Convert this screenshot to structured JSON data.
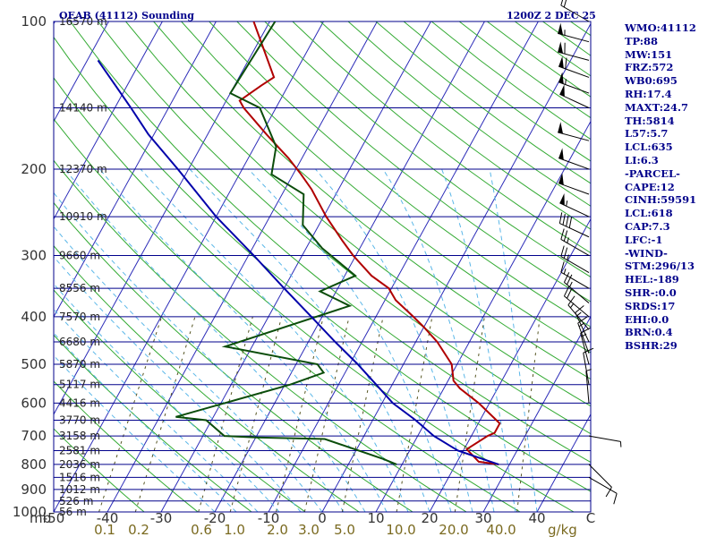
{
  "header": {
    "station": "OEAB (41112) Sounding",
    "time": "1200Z  2 DEC 25"
  },
  "colors": {
    "isobar": "#00008b",
    "isotherm": "#2c2cb8",
    "dry_adiabat": "#33aa33",
    "moist_adiabat": "#5bb7e8",
    "mixing_ratio": "#555522",
    "temperature": "#b00000",
    "dewpoint": "#0b4d0b",
    "parcel": "#0000aa",
    "wind": "#000000",
    "panel_text": "#00008b",
    "axis_text_temp": "#333333",
    "axis_text_mixr": "#7a6a20"
  },
  "side_panel": [
    "WMO:41112",
    "TP:88",
    "MW:151",
    "FRZ:572",
    "WB0:695",
    "RH:17.4",
    "MAXT:24.7",
    "TH:5814",
    "L57:5.7",
    "LCL:635",
    "LI:6.3",
    "-PARCEL-",
    "CAPE:12",
    "CINH:59591",
    "LCL:618",
    "CAP:7.3",
    "LFC:-1",
    "-WIND-",
    "STM:296/13",
    "HEL:-189",
    "SHR-:0.0",
    "SRDS:17",
    "EHI:0.0",
    "BRN:0.4",
    "BSHR:29"
  ],
  "chart_data": {
    "type": "line",
    "title": "OEAB (41112) Sounding",
    "subtitle": "1200Z  2 DEC 25",
    "xlabel": "",
    "ylabel": "mb",
    "y_scale": "log",
    "ylim": [
      1000,
      100
    ],
    "xlim": [
      -50,
      50
    ],
    "pressure_ticks": [
      100,
      200,
      300,
      400,
      500,
      600,
      700,
      800,
      900,
      1000
    ],
    "temperature_ticks": [
      -50,
      -40,
      -30,
      -20,
      -10,
      0,
      10,
      20,
      30,
      40,
      50
    ],
    "temperature_tick_labels": [
      "-50",
      "-40",
      "-30",
      "-20",
      "-10",
      "0",
      "10",
      "20",
      "30",
      "40",
      "C"
    ],
    "mixing_ratio_ticks": [
      0.1,
      0.2,
      0.6,
      1.0,
      2.0,
      3.0,
      5.0,
      10.0,
      20.0,
      40.0
    ],
    "mixing_ratio_tick_labels": [
      "0.1",
      "0.2",
      "0.6",
      "1.0",
      "2.0",
      "3.0",
      "5.0",
      "10.0",
      "20.0",
      "40.0"
    ],
    "mixing_ratio_unit": "g/kg",
    "x_corner_label": "mb",
    "height_labels": [
      {
        "p": 100,
        "label": "16570 m"
      },
      {
        "p": 150,
        "label": "14140 m"
      },
      {
        "p": 200,
        "label": "12370 m"
      },
      {
        "p": 250,
        "label": "10910 m"
      },
      {
        "p": 300,
        "label": "9660 m"
      },
      {
        "p": 350,
        "label": "8556 m"
      },
      {
        "p": 400,
        "label": "7570 m"
      },
      {
        "p": 450,
        "label": "6680 m"
      },
      {
        "p": 500,
        "label": "5870 m"
      },
      {
        "p": 550,
        "label": "5117 m"
      },
      {
        "p": 600,
        "label": "4416 m"
      },
      {
        "p": 650,
        "label": "3770 m"
      },
      {
        "p": 700,
        "label": "3158 m"
      },
      {
        "p": 750,
        "label": "2581 m"
      },
      {
        "p": 800,
        "label": "2036 m"
      },
      {
        "p": 850,
        "label": "1516 m"
      },
      {
        "p": 900,
        "label": "1012 m"
      },
      {
        "p": 950,
        "label": "526 m"
      },
      {
        "p": 1000,
        "label": "56 m"
      }
    ],
    "series": [
      {
        "name": "",
        "kind": "temperature",
        "points": [
          {
            "p": 800,
            "t": 28
          },
          {
            "p": 790,
            "t": 24
          },
          {
            "p": 745,
            "t": 20.5
          },
          {
            "p": 700,
            "t": 23
          },
          {
            "p": 690,
            "t": 24
          },
          {
            "p": 660,
            "t": 24
          },
          {
            "p": 600,
            "t": 18
          },
          {
            "p": 560,
            "t": 13
          },
          {
            "p": 540,
            "t": 11
          },
          {
            "p": 500,
            "t": 9
          },
          {
            "p": 450,
            "t": 4
          },
          {
            "p": 420,
            "t": 0
          },
          {
            "p": 400,
            "t": -3
          },
          {
            "p": 370,
            "t": -8
          },
          {
            "p": 350,
            "t": -10.5
          },
          {
            "p": 330,
            "t": -15
          },
          {
            "p": 300,
            "t": -20.5
          },
          {
            "p": 280,
            "t": -24
          },
          {
            "p": 250,
            "t": -29.5
          },
          {
            "p": 220,
            "t": -35
          },
          {
            "p": 205,
            "t": -38.5
          },
          {
            "p": 190,
            "t": -42.5
          },
          {
            "p": 170,
            "t": -49
          },
          {
            "p": 150,
            "t": -56
          },
          {
            "p": 145,
            "t": -57.5
          },
          {
            "p": 135,
            "t": -55
          },
          {
            "p": 130,
            "t": -53.5
          },
          {
            "p": 100,
            "t": -63
          }
        ]
      },
      {
        "name": "",
        "kind": "dewpoint",
        "points": [
          {
            "p": 800,
            "t": 9
          },
          {
            "p": 780,
            "t": 6
          },
          {
            "p": 710,
            "t": -7
          },
          {
            "p": 705,
            "t": -20
          },
          {
            "p": 700,
            "t": -26
          },
          {
            "p": 650,
            "t": -31
          },
          {
            "p": 640,
            "t": -37
          },
          {
            "p": 550,
            "t": -19
          },
          {
            "p": 520,
            "t": -14
          },
          {
            "p": 500,
            "t": -16
          },
          {
            "p": 460,
            "t": -35
          },
          {
            "p": 380,
            "t": -16
          },
          {
            "p": 355,
            "t": -23
          },
          {
            "p": 330,
            "t": -18
          },
          {
            "p": 290,
            "t": -27
          },
          {
            "p": 260,
            "t": -33
          },
          {
            "p": 225,
            "t": -36
          },
          {
            "p": 205,
            "t": -44
          },
          {
            "p": 180,
            "t": -46
          },
          {
            "p": 150,
            "t": -53
          },
          {
            "p": 140,
            "t": -60
          },
          {
            "p": 100,
            "t": -59
          }
        ]
      },
      {
        "name": "",
        "kind": "parcel",
        "points": [
          {
            "p": 800,
            "t": 28
          },
          {
            "p": 750,
            "t": 19
          },
          {
            "p": 700,
            "t": 13
          },
          {
            "p": 650,
            "t": 8
          },
          {
            "p": 600,
            "t": 2
          },
          {
            "p": 550,
            "t": -3
          },
          {
            "p": 500,
            "t": -8.5
          },
          {
            "p": 450,
            "t": -15
          },
          {
            "p": 400,
            "t": -22
          },
          {
            "p": 350,
            "t": -30
          },
          {
            "p": 300,
            "t": -39
          },
          {
            "p": 250,
            "t": -50
          },
          {
            "p": 200,
            "t": -62
          },
          {
            "p": 170,
            "t": -71
          },
          {
            "p": 150,
            "t": -77
          },
          {
            "p": 120,
            "t": -88
          }
        ]
      }
    ],
    "winds": [
      {
        "p": 100,
        "dir": 300,
        "spd": 20
      },
      {
        "p": 110,
        "dir": 285,
        "spd": 55
      },
      {
        "p": 120,
        "dir": 285,
        "spd": 60
      },
      {
        "p": 130,
        "dir": 290,
        "spd": 60
      },
      {
        "p": 140,
        "dir": 290,
        "spd": 55
      },
      {
        "p": 150,
        "dir": 295,
        "spd": 50
      },
      {
        "p": 175,
        "dir": 285,
        "spd": 50
      },
      {
        "p": 200,
        "dir": 290,
        "spd": 50
      },
      {
        "p": 225,
        "dir": 290,
        "spd": 50
      },
      {
        "p": 250,
        "dir": 295,
        "spd": 55
      },
      {
        "p": 275,
        "dir": 295,
        "spd": 40
      },
      {
        "p": 300,
        "dir": 300,
        "spd": 25
      },
      {
        "p": 325,
        "dir": 300,
        "spd": 25
      },
      {
        "p": 350,
        "dir": 300,
        "spd": 15
      },
      {
        "p": 375,
        "dir": 310,
        "spd": 25
      },
      {
        "p": 400,
        "dir": 310,
        "spd": 20
      },
      {
        "p": 425,
        "dir": 320,
        "spd": 15
      },
      {
        "p": 450,
        "dir": 335,
        "spd": 15
      },
      {
        "p": 475,
        "dir": 340,
        "spd": 15
      },
      {
        "p": 500,
        "dir": 345,
        "spd": 15
      },
      {
        "p": 550,
        "dir": 350,
        "spd": 10
      },
      {
        "p": 600,
        "dir": 355,
        "spd": 5
      },
      {
        "p": 700,
        "dir": 100,
        "spd": 5
      },
      {
        "p": 800,
        "dir": 135,
        "spd": 10
      },
      {
        "p": 850,
        "dir": 120,
        "spd": 10
      }
    ]
  }
}
